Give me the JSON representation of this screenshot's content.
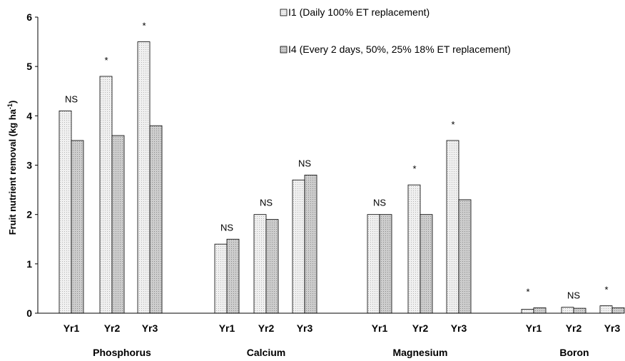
{
  "chart_data": {
    "type": "bar",
    "ylabel": "Fruit nutrient removal (kg ha",
    "ylabel_superscript": "-1",
    "ylabel_close": ")",
    "ylim": [
      0,
      6
    ],
    "yticks": [
      "0",
      "1",
      "2",
      "3",
      "4",
      "5",
      "6"
    ],
    "grid": false,
    "legend_position": "top-right",
    "series": [
      {
        "name": "I1 (Daily 100% ET replacement)",
        "color": "#ececec",
        "pattern": "dotted-light"
      },
      {
        "name": "I4 (Every 2 days, 50%, 25% 18% ET replacement)",
        "color": "#c8c8c8",
        "pattern": "dotted-dark"
      }
    ],
    "groups": [
      {
        "name": "Phosphorus",
        "categories": [
          "Yr1",
          "Yr2",
          "Yr3"
        ],
        "I1": [
          4.1,
          4.8,
          5.5
        ],
        "I4": [
          3.5,
          3.6,
          3.8
        ],
        "significance": [
          "NS",
          "*",
          "*"
        ]
      },
      {
        "name": "Calcium",
        "categories": [
          "Yr1",
          "Yr2",
          "Yr3"
        ],
        "I1": [
          1.4,
          2.0,
          2.7
        ],
        "I4": [
          1.5,
          1.9,
          2.8
        ],
        "significance": [
          "NS",
          "NS",
          "NS"
        ]
      },
      {
        "name": "Magnesium",
        "categories": [
          "Yr1",
          "Yr2",
          "Yr3"
        ],
        "I1": [
          2.0,
          2.6,
          3.5
        ],
        "I4": [
          2.0,
          2.0,
          2.3
        ],
        "significance": [
          "NS",
          "*",
          "*"
        ]
      },
      {
        "name": "Boron",
        "categories": [
          "Yr1",
          "Yr2",
          "Yr3"
        ],
        "I1": [
          0.08,
          0.12,
          0.15
        ],
        "I4": [
          0.11,
          0.1,
          0.11
        ],
        "significance": [
          "*",
          "NS",
          "*"
        ]
      }
    ]
  }
}
